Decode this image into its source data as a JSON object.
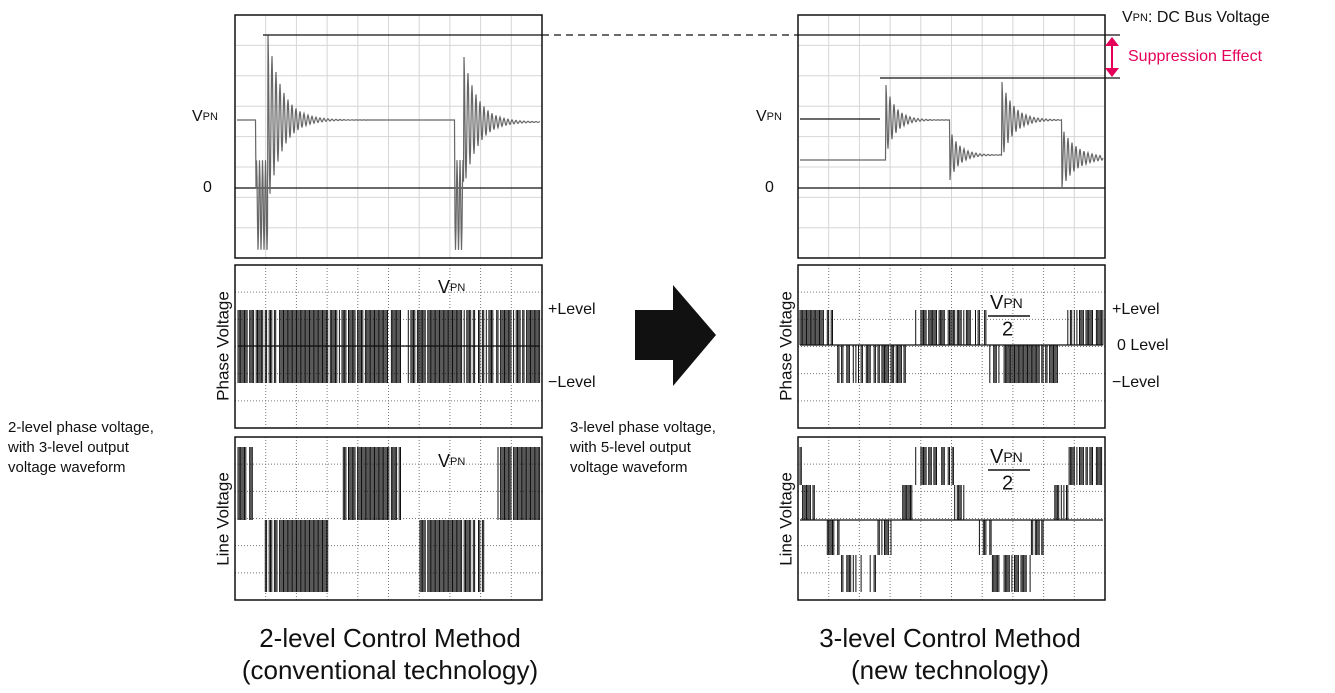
{
  "left": {
    "scope": {
      "vpn": {
        "v": "V",
        "sub": "PN"
      },
      "zero": "0"
    },
    "phase": {
      "axis_label": "Phase Voltage",
      "vpn": {
        "v": "V",
        "sub": "PN"
      },
      "plus_level": "+Level",
      "minus_level": "−Level"
    },
    "note": [
      "2-level phase voltage,",
      "with 3-level output",
      "voltage waveform"
    ],
    "line": {
      "axis_label": "Line Voltage",
      "vpn": {
        "v": "V",
        "sub": "PN"
      }
    },
    "title": [
      "2-level Control Method",
      "(conventional technology)"
    ]
  },
  "right": {
    "legend": {
      "v": "V",
      "sub": "PN",
      "text": ": DC Bus Voltage"
    },
    "suppression": "Suppression Effect",
    "scope": {
      "vpn": {
        "v": "V",
        "sub": "PN"
      },
      "zero": "0"
    },
    "phase": {
      "axis_label": "Phase Voltage",
      "fraction": {
        "v": "V",
        "sub": "PN",
        "denominator": "2"
      },
      "plus_level": "+Level",
      "zero_level": "0 Level",
      "minus_level": "−Level"
    },
    "note": [
      "3-level phase voltage,",
      "with 5-level output",
      "voltage waveform"
    ],
    "line": {
      "axis_label": "Line Voltage",
      "fraction": {
        "v": "V",
        "sub": "PN",
        "denominator": "2"
      }
    },
    "title": [
      "3-level Control Method",
      "(new technology)"
    ]
  }
}
